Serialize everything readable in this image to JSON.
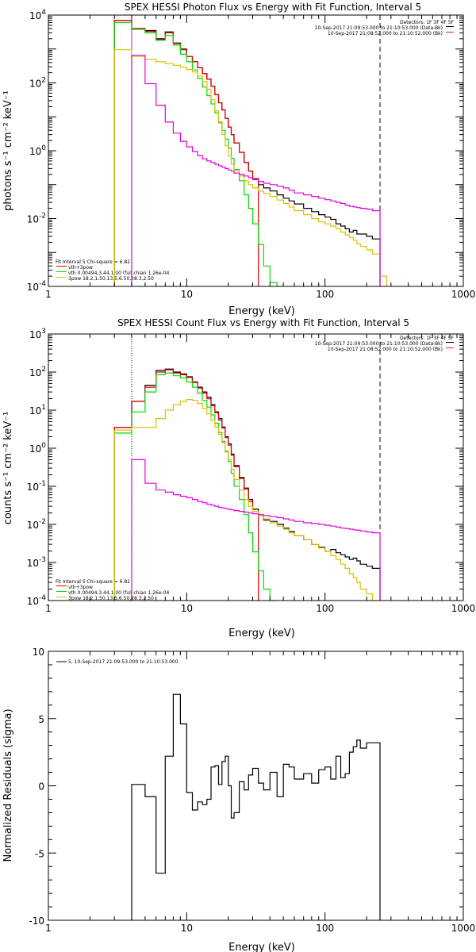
{
  "colors": {
    "red": "#e00000",
    "green": "#00dd00",
    "yellow": "#d8c000",
    "magenta": "#e000e0",
    "black": "#000000"
  },
  "chart_data": [
    {
      "type": "line",
      "title": "SPEX HESSI Photon Flux vs Energy with Fit Function, Interval 5",
      "xlabel": "Energy (keV)",
      "ylabel": "photons s⁻¹ cm⁻² keV⁻¹",
      "xscale": "log",
      "yscale": "log",
      "xlim": [
        1,
        1000
      ],
      "ylim": [
        0.0001,
        10000
      ],
      "x_ticks": [
        "1",
        "10",
        "100",
        "1000"
      ],
      "y_ticks": [
        {
          "base": "10",
          "exp": "-4"
        },
        {
          "base": "10",
          "exp": "-2"
        },
        {
          "base": "10",
          "exp": "0"
        },
        {
          "base": "10",
          "exp": "2"
        },
        {
          "base": "10",
          "exp": "4"
        }
      ],
      "legend_top": {
        "position": "top-right",
        "header": "Detectors: 1F 3F 4F 5F",
        "entries": [
          {
            "label": "10-Sep-2017 21:09:53.000 to 21:10:53.000 (Data-Bk)",
            "color": "black"
          },
          {
            "label": "10-Sep-2017 21:08:52.000 to 21:10:52.000 (Bk)",
            "color": "magenta"
          }
        ]
      },
      "legend_fit": {
        "position": "bottom-left",
        "header": "Fit Interval 5   Chi-square = 6.82",
        "entries": [
          {
            "label": "vth+3pow",
            "color": "red"
          },
          {
            "label": "vth 0.00494,3.44,1.00  (full chian 1.26e-04",
            "color": "green"
          },
          {
            "label": "3pow 18.2,1.50,13.5,6.50,28.3,2.50",
            "color": "yellow"
          }
        ]
      },
      "vlines": [
        {
          "x": 4.0,
          "style": "solid",
          "color": "magenta"
        },
        {
          "x": 250,
          "style": "dashed",
          "color": "black"
        }
      ],
      "edges": [
        3,
        4,
        5,
        6,
        7,
        8,
        9,
        10,
        11,
        12,
        13,
        14,
        15,
        16,
        17,
        18,
        19,
        20,
        21,
        22,
        24,
        26,
        28,
        30,
        33,
        36,
        40,
        45,
        50,
        55,
        60,
        70,
        80,
        90,
        100,
        110,
        120,
        130,
        140,
        150,
        160,
        170,
        180,
        200,
        220,
        250,
        280
      ],
      "series": [
        {
          "name": "",
          "color": "black",
          "values": [
            7000,
            4000,
            3500,
            2000,
            3200,
            1500,
            1000,
            600,
            420,
            280,
            190,
            130,
            80,
            45,
            26,
            16,
            9,
            5,
            3,
            1.7,
            0.9,
            0.45,
            0.25,
            0.15,
            0.1,
            0.08,
            0.065,
            0.05,
            0.04,
            0.033,
            0.027,
            0.02,
            0.016,
            0.013,
            0.011,
            0.0095,
            0.007,
            0.006,
            0.005,
            0.004,
            0.0045,
            0.0035,
            0.0035,
            0.003,
            0.0025,
            null
          ]
        },
        {
          "name": "",
          "color": "red",
          "values": [
            7000,
            4000,
            3300,
            1900,
            3000,
            1450,
            950,
            600,
            420,
            280,
            190,
            130,
            80,
            45,
            26,
            16,
            9,
            5,
            3,
            1.7,
            0.9,
            0.45,
            0.25,
            0.15,
            null,
            null,
            null,
            null,
            null,
            null,
            null,
            null,
            null,
            null,
            null,
            null,
            null,
            null,
            null,
            null,
            null,
            null,
            null,
            null,
            null,
            null
          ]
        },
        {
          "name": "",
          "color": "green",
          "values": [
            6000,
            3800,
            3000,
            1800,
            2500,
            1300,
            700,
            420,
            240,
            135,
            75,
            42,
            24,
            13,
            7,
            4,
            2.2,
            1.2,
            0.6,
            0.28,
            0.13,
            0.05,
            0.02,
            0.007,
            0.0017,
            0.0004,
            0.00013,
            5e-05,
            null,
            null,
            null,
            null,
            null,
            null,
            null,
            null,
            null,
            null,
            null,
            null,
            null,
            null,
            null,
            null,
            null,
            null
          ]
        },
        {
          "name": "",
          "color": "yellow",
          "values": [
            950,
            600,
            500,
            420,
            370,
            330,
            290,
            250,
            210,
            160,
            110,
            65,
            32,
            15,
            6.5,
            3,
            1.4,
            0.7,
            0.4,
            0.26,
            0.18,
            0.13,
            0.1,
            0.08,
            0.065,
            0.055,
            0.045,
            0.035,
            0.028,
            0.022,
            0.017,
            0.013,
            0.01,
            0.008,
            0.007,
            0.006,
            0.005,
            0.004,
            0.0033,
            0.0028,
            0.0023,
            0.0018,
            0.0015,
            0.0012,
            0.0009,
            0.0002
          ]
        },
        {
          "name": "",
          "color": "magenta",
          "values": [
            null,
            650,
            95,
            22,
            7,
            3.3,
            1.9,
            1.3,
            0.95,
            0.72,
            0.58,
            0.5,
            0.45,
            0.4,
            0.36,
            0.33,
            0.3,
            0.27,
            0.25,
            0.22,
            0.2,
            0.18,
            0.16,
            0.14,
            0.125,
            0.11,
            0.1,
            0.09,
            0.08,
            0.068,
            0.057,
            0.05,
            0.045,
            0.04,
            0.036,
            0.033,
            0.03,
            0.028,
            0.025,
            0.023,
            0.022,
            0.021,
            0.02,
            0.019,
            0.017,
            null
          ]
        }
      ]
    },
    {
      "type": "line",
      "title": "SPEX HESSI Count Flux vs Energy with Fit Function, Interval 5",
      "xlabel": "Energy (keV)",
      "ylabel": "counts s⁻¹ cm⁻² keV⁻¹",
      "xscale": "log",
      "yscale": "log",
      "xlim": [
        1,
        1000
      ],
      "ylim": [
        0.0001,
        1000
      ],
      "x_ticks": [
        "1",
        "10",
        "100",
        "1000"
      ],
      "y_ticks": [
        {
          "base": "10",
          "exp": "-4"
        },
        {
          "base": "10",
          "exp": "-3"
        },
        {
          "base": "10",
          "exp": "-2"
        },
        {
          "base": "10",
          "exp": "-1"
        },
        {
          "base": "10",
          "exp": "0"
        },
        {
          "base": "10",
          "exp": "1"
        },
        {
          "base": "10",
          "exp": "2"
        },
        {
          "base": "10",
          "exp": "3"
        }
      ],
      "legend_top": {
        "position": "top-right",
        "header": "Detectors: 1F 3F 4F 5F",
        "entries": [
          {
            "label": "10-Sep-2017 21:09:53.000 to 21:10:53.000 (Data-Bk)",
            "color": "black"
          },
          {
            "label": "10-Sep-2017 21:08:52.000 to 21:10:52.000 (Bk)",
            "color": "magenta"
          }
        ]
      },
      "legend_fit": {
        "position": "bottom-left",
        "header": "Fit Interval 5   Chi-square = 6.82",
        "entries": [
          {
            "label": "vth+3pow",
            "color": "red"
          },
          {
            "label": "vth 0.00494,3.44,1.00  (full chian 1.26e-04",
            "color": "green"
          },
          {
            "label": "3pow 18.2,1.50,13.5,6.50,28.3,2.50",
            "color": "yellow"
          }
        ]
      },
      "vlines": [
        {
          "x": 4.0,
          "style": "dotted",
          "color": "black"
        },
        {
          "x": 250,
          "style": "dashed",
          "color": "black"
        }
      ],
      "edges": [
        3,
        4,
        5,
        6,
        7,
        8,
        9,
        10,
        11,
        12,
        13,
        14,
        15,
        16,
        17,
        18,
        19,
        20,
        21,
        22,
        24,
        26,
        28,
        30,
        33,
        36,
        40,
        45,
        50,
        55,
        60,
        70,
        80,
        90,
        100,
        110,
        120,
        130,
        140,
        150,
        160,
        170,
        180,
        200,
        220,
        250,
        280
      ],
      "series": [
        {
          "name": "",
          "color": "black",
          "values": [
            3.5,
            17,
            45,
            110,
            120,
            100,
            90,
            75,
            55,
            40,
            30,
            22,
            14,
            9,
            6,
            3.6,
            2,
            1.3,
            0.7,
            0.35,
            0.17,
            0.09,
            0.045,
            0.025,
            0.017,
            0.013,
            0.012,
            0.01,
            0.008,
            0.0065,
            0.005,
            0.004,
            0.003,
            0.0025,
            0.002,
            0.0022,
            0.0018,
            0.0016,
            0.0014,
            0.0012,
            0.0013,
            0.0011,
            0.0009,
            0.0008,
            0.0007,
            null
          ]
        },
        {
          "name": "",
          "color": "red",
          "values": [
            3.5,
            17,
            40,
            100,
            115,
            95,
            85,
            72,
            53,
            38,
            28,
            20,
            13,
            8.5,
            5.5,
            3.4,
            1.9,
            1.2,
            0.65,
            0.33,
            0.16,
            0.085,
            0.04,
            0.022,
            null,
            null,
            null,
            null,
            null,
            null,
            null,
            null,
            null,
            null,
            null,
            null,
            null,
            null,
            null,
            null,
            null,
            null,
            null,
            null,
            null,
            null
          ]
        },
        {
          "name": "",
          "color": "green",
          "values": [
            2.5,
            9,
            30,
            85,
            95,
            80,
            70,
            55,
            40,
            28,
            18,
            12,
            7.5,
            4.5,
            2.6,
            1.5,
            0.8,
            0.45,
            0.22,
            0.1,
            0.045,
            0.018,
            0.006,
            0.0019,
            0.0006,
            0.0002,
            6e-05,
            null,
            null,
            null,
            null,
            null,
            null,
            null,
            null,
            null,
            null,
            null,
            null,
            null,
            null,
            null,
            null,
            null,
            null,
            null
          ]
        },
        {
          "name": "",
          "color": "yellow",
          "values": [
            3.0,
            3.5,
            3.5,
            6,
            10,
            14,
            17,
            19,
            18,
            15,
            11,
            8,
            5.5,
            3.6,
            2.3,
            1.4,
            0.85,
            0.5,
            0.28,
            0.15,
            0.08,
            0.045,
            0.03,
            0.022,
            0.017,
            0.014,
            0.011,
            0.009,
            0.0075,
            0.006,
            0.005,
            0.004,
            0.003,
            0.0024,
            0.002,
            0.0015,
            0.0012,
            0.0009,
            0.0007,
            0.0005,
            0.0004,
            0.0003,
            0.0002,
            0.00015,
            0.0001,
            null
          ]
        },
        {
          "name": "",
          "color": "magenta",
          "values": [
            null,
            0.5,
            0.12,
            0.08,
            0.07,
            0.06,
            0.055,
            0.05,
            0.045,
            0.04,
            0.037,
            0.034,
            0.032,
            0.03,
            0.028,
            0.027,
            0.026,
            0.025,
            0.024,
            0.023,
            0.022,
            0.021,
            0.02,
            0.019,
            0.018,
            0.017,
            0.016,
            0.015,
            0.014,
            0.013,
            0.012,
            0.011,
            0.0105,
            0.01,
            0.0095,
            0.009,
            0.0085,
            0.008,
            0.0078,
            0.0075,
            0.0072,
            0.007,
            0.0067,
            0.0063,
            0.006,
            null
          ]
        }
      ]
    },
    {
      "type": "line",
      "title": "",
      "xlabel": "Energy (keV)",
      "ylabel": "Normalized Residuals (sigma)",
      "xscale": "log",
      "yscale": "linear",
      "xlim": [
        1,
        1000
      ],
      "ylim": [
        -10,
        10
      ],
      "x_ticks": [
        "1",
        "10",
        "100",
        "1000"
      ],
      "y_ticks": [
        "10",
        "5",
        "0",
        "-5",
        "-10"
      ],
      "legend": {
        "position": "top-left",
        "entries": [
          {
            "label": "5, 10-Sep-2017 21:09:53.000 to 21:10:53.000",
            "color": "black"
          }
        ]
      },
      "edges": [
        4,
        5,
        6,
        7,
        8,
        9,
        10,
        11,
        12,
        13,
        14,
        15,
        16,
        17,
        18,
        19,
        20,
        21,
        22,
        24,
        26,
        28,
        30,
        33,
        36,
        40,
        45,
        50,
        55,
        60,
        70,
        80,
        90,
        100,
        110,
        120,
        130,
        140,
        150,
        160,
        170,
        180,
        200,
        220,
        250
      ],
      "series": [
        {
          "name": "",
          "color": "black",
          "values": [
            0.1,
            -0.8,
            -6.5,
            2.2,
            6.8,
            4.6,
            -0.5,
            -1.8,
            -1.2,
            -1.4,
            -1.0,
            1.4,
            1.5,
            0.1,
            1.8,
            2.2,
            0.0,
            -2.4,
            -2.0,
            0.3,
            -0.3,
            0.8,
            1.3,
            0.2,
            -0.3,
            1.0,
            -0.8,
            1.6,
            1.4,
            0.5,
            0.9,
            0.2,
            1.2,
            1.4,
            0.5,
            2.2,
            0.6,
            0.9,
            2.5,
            2.9,
            3.4,
            2.8,
            3.2,
            3.2
          ]
        }
      ]
    }
  ]
}
